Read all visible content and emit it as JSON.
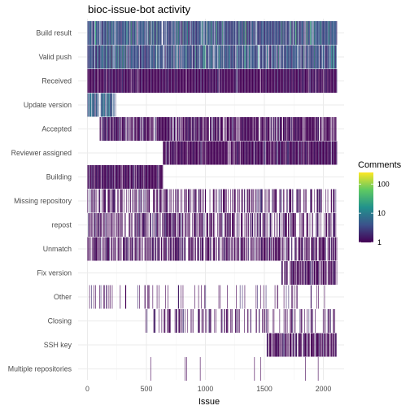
{
  "chart_data": {
    "type": "heatmap",
    "title": "bioc-issue-bot activity",
    "xlabel": "Issue",
    "ylabel": "",
    "xlim": [
      0,
      2130
    ],
    "x_ticks": [
      0,
      500,
      1000,
      1500,
      2000
    ],
    "x_tick_labels": [
      "0",
      "500",
      "1000",
      "1500",
      "2000"
    ],
    "grid": true,
    "legend": {
      "title": "Comments",
      "placement": "right",
      "scale": "log10",
      "range": [
        1,
        250
      ],
      "ticks": [
        1,
        10,
        100
      ],
      "tick_labels": [
        "1",
        "10",
        "100"
      ],
      "colormap": "viridis",
      "colors": [
        "#440154",
        "#3b528b",
        "#21918c",
        "#5ec962",
        "#fde725"
      ]
    },
    "categories": [
      "Build result",
      "Valid push",
      "Received",
      "Update version",
      "Accepted",
      "Reviewer assigned",
      "Building",
      "Missing repository",
      "repost",
      "Unmatch",
      "Fix version",
      "Other",
      "Closing",
      "SSH key",
      "Multiple repositories"
    ],
    "series": [
      {
        "category": "Build result",
        "coverage": [
          [
            0,
            2115
          ]
        ],
        "density": 0.92,
        "comments_typical": 3,
        "comments_max": 40
      },
      {
        "category": "Valid push",
        "coverage": [
          [
            0,
            2115
          ]
        ],
        "density": 0.9,
        "comments_typical": 3,
        "comments_max": 30
      },
      {
        "category": "Received",
        "coverage": [
          [
            0,
            2115
          ]
        ],
        "density": 0.97,
        "comments_typical": 1,
        "comments_max": 2
      },
      {
        "category": "Update version",
        "coverage": [
          [
            0,
            245
          ]
        ],
        "density": 0.75,
        "comments_typical": 4,
        "comments_max": 15
      },
      {
        "category": "Accepted",
        "coverage": [
          [
            100,
            350
          ],
          [
            350,
            2115
          ]
        ],
        "density": 0.82,
        "comments_typical": 1,
        "comments_max": 2
      },
      {
        "category": "Reviewer assigned",
        "coverage": [
          [
            640,
            2115
          ]
        ],
        "density": 0.95,
        "comments_typical": 1,
        "comments_max": 2
      },
      {
        "category": "Building",
        "coverage": [
          [
            0,
            640
          ]
        ],
        "density": 0.96,
        "comments_typical": 1,
        "comments_max": 2
      },
      {
        "category": "Missing repository",
        "coverage": [
          [
            0,
            2115
          ]
        ],
        "density": 0.45,
        "comments_typical": 1,
        "comments_max": 2
      },
      {
        "category": "repost",
        "coverage": [
          [
            0,
            2115
          ]
        ],
        "density": 0.5,
        "comments_typical": 1,
        "comments_max": 2
      },
      {
        "category": "Unmatch",
        "coverage": [
          [
            0,
            2115
          ]
        ],
        "density": 0.55,
        "comments_typical": 1,
        "comments_max": 2
      },
      {
        "category": "Fix version",
        "coverage": [
          [
            1640,
            2115
          ]
        ],
        "density": 0.75,
        "comments_typical": 1,
        "comments_max": 2
      },
      {
        "category": "Other",
        "coverage": [
          [
            0,
            2115
          ]
        ],
        "density": 0.12,
        "comments_typical": 1,
        "comments_max": 2
      },
      {
        "category": "Closing",
        "coverage": [
          [
            480,
            2115
          ]
        ],
        "density": 0.3,
        "comments_typical": 1,
        "comments_max": 2
      },
      {
        "category": "SSH key",
        "coverage": [
          [
            1520,
            2115
          ]
        ],
        "density": 0.75,
        "comments_typical": 1,
        "comments_max": 2
      },
      {
        "category": "Multiple repositories",
        "coverage": [
          [
            50,
            2000
          ]
        ],
        "density": 0.02,
        "comments_typical": 1,
        "comments_max": 1
      }
    ]
  }
}
